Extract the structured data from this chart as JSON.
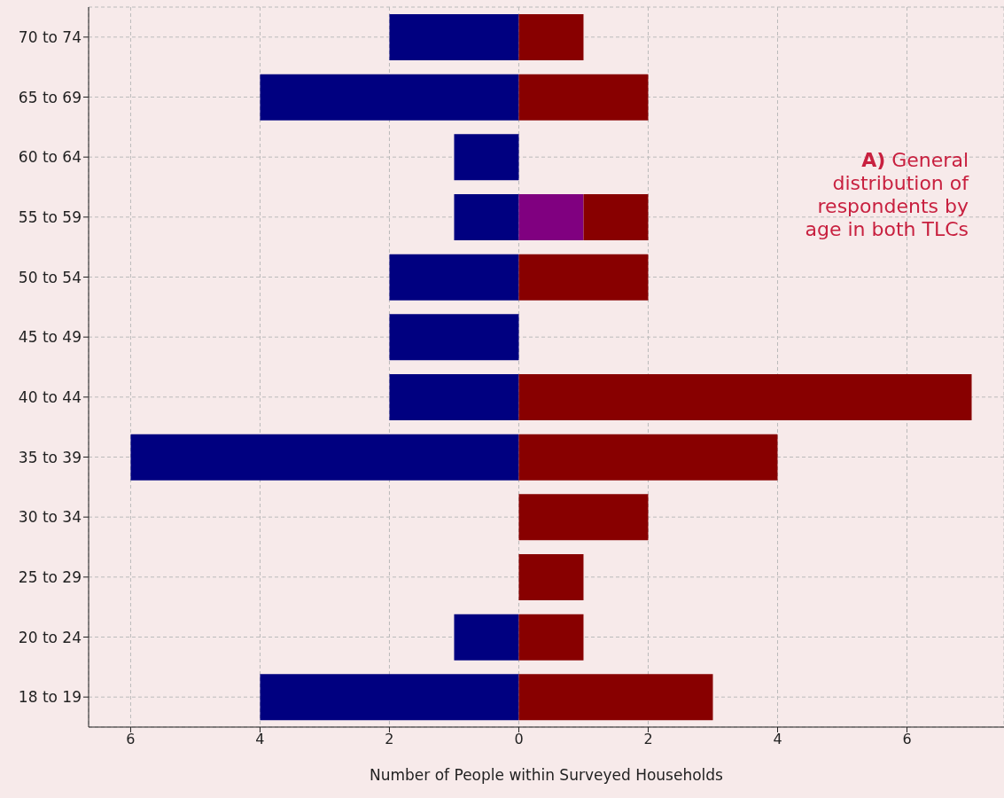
{
  "chart_data": {
    "type": "bar",
    "orientation": "horizontal",
    "stacked": true,
    "xlabel": "Number of People within Surveyed Households",
    "annotations": [
      "A) General distribution of respondents by age in both TLCs"
    ],
    "categories": [
      "70 to 74",
      "65 to 69",
      "60 to 64",
      "55 to 59",
      "50 to 54",
      "45 to 49",
      "40 to 44",
      "35 to 39",
      "30 to 34",
      "25 to 29",
      "20 to 24",
      "18 to 19"
    ],
    "series": [
      {
        "color": "#000080",
        "values": [
          -2,
          -4,
          -1,
          -1,
          -2,
          -2,
          -2,
          -6,
          null,
          null,
          -1,
          -4
        ]
      },
      {
        "color": "#800080",
        "values": [
          null,
          null,
          null,
          1,
          null,
          null,
          null,
          null,
          null,
          null,
          null,
          null
        ]
      },
      {
        "color": "#880000",
        "values": [
          1,
          2,
          null,
          1,
          2,
          null,
          7,
          4,
          2,
          1,
          1,
          3
        ]
      }
    ],
    "xlim": [
      -6.65,
      7.5
    ],
    "xticks": [
      {
        "value": -6,
        "label": "6"
      },
      {
        "value": -4,
        "label": "4"
      },
      {
        "value": -2,
        "label": "2"
      },
      0,
      2,
      4,
      6
    ],
    "grid": true,
    "legend": false
  }
}
